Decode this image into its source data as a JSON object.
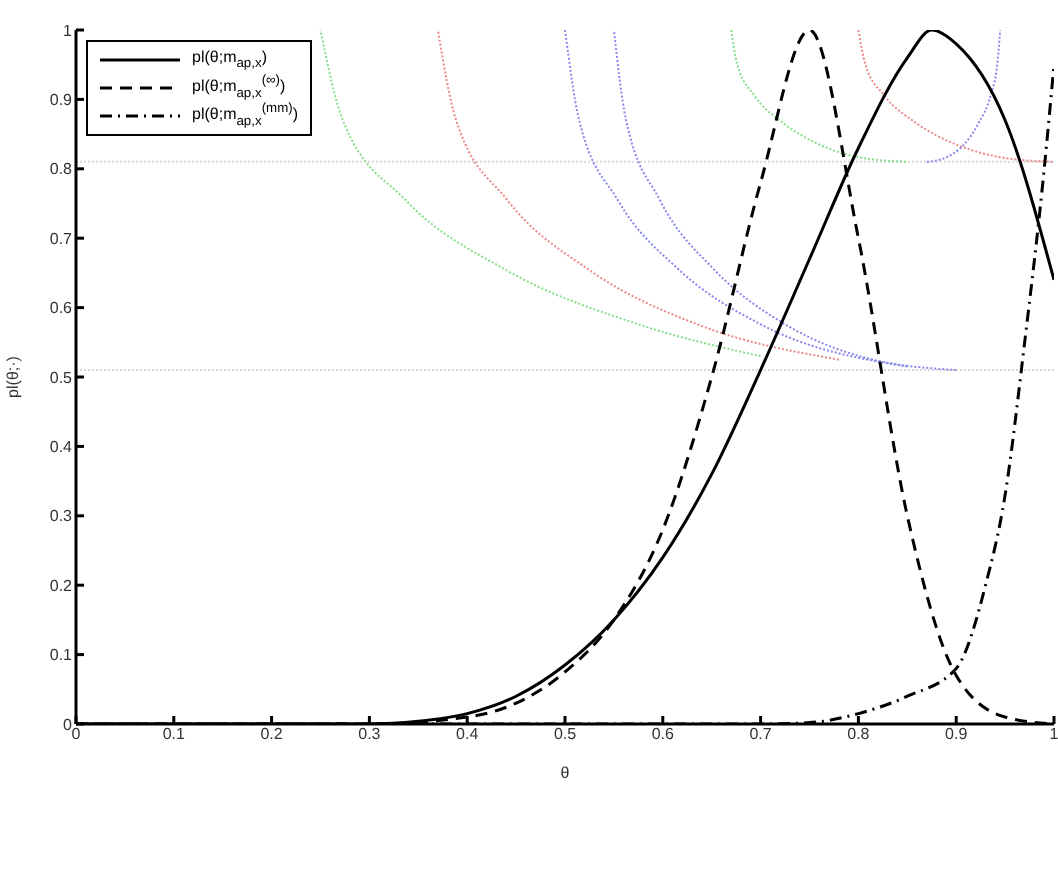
{
  "chart_data": {
    "type": "line",
    "xlabel": "θ",
    "ylabel": "pl(θ;·)",
    "xlim": [
      0,
      1
    ],
    "ylim": [
      0,
      1
    ],
    "xticks": [
      0,
      0.1,
      0.2,
      0.3,
      0.4,
      0.5,
      0.6,
      0.7,
      0.8,
      0.9,
      1
    ],
    "yticks": [
      0,
      0.1,
      0.2,
      0.3,
      0.4,
      0.5,
      0.6,
      0.7,
      0.8,
      0.9,
      1
    ],
    "grid": false,
    "legend": "top left",
    "marker": "none",
    "ref_lines": [
      {
        "axis": "y",
        "value": 0.81,
        "color": "#d8d8d8",
        "line_style": "dotted"
      },
      {
        "axis": "y",
        "value": 0.51,
        "color": "#d8d8d8",
        "line_style": "dotted"
      }
    ],
    "series": [
      {
        "color": "#88dd88",
        "line_style": "dotted",
        "x": [
          0.7,
          0.575,
          0.44,
          0.337,
          0.272,
          0.25
        ],
        "values": [
          0.53,
          0.576,
          0.654,
          0.755,
          0.873,
          1
        ]
      },
      {
        "color": "#ee8888",
        "line_style": "dotted",
        "x": [
          0.78,
          0.635,
          0.525,
          0.441,
          0.388,
          0.37
        ],
        "values": [
          0.525,
          0.576,
          0.654,
          0.755,
          0.873,
          1
        ]
      },
      {
        "color": "#8888ee",
        "line_style": "dotted",
        "x": [
          0.85,
          0.7,
          0.617,
          0.554,
          0.514,
          0.5
        ],
        "values": [
          0.515,
          0.576,
          0.654,
          0.755,
          0.873,
          1
        ]
      },
      {
        "color": "#8888ee",
        "line_style": "dotted",
        "x": [
          0.9,
          0.809,
          0.725,
          0.653,
          0.597,
          0.562,
          0.55
        ],
        "values": [
          0.51,
          0.527,
          0.576,
          0.654,
          0.755,
          0.873,
          1
        ]
      },
      {
        "color": "#88dd88",
        "line_style": "dotted",
        "x": [
          0.67,
          0.676,
          0.694,
          0.723,
          0.76,
          0.803,
          0.85
        ],
        "values": [
          1,
          0.951,
          0.905,
          0.866,
          0.835,
          0.816,
          0.81
        ]
      },
      {
        "color": "#ee8888",
        "line_style": "dotted",
        "x": [
          0.8,
          0.807,
          0.827,
          0.859,
          0.9,
          0.948,
          1
        ],
        "values": [
          1,
          0.951,
          0.905,
          0.866,
          0.835,
          0.816,
          0.81
        ]
      },
      {
        "color": "#8888ee",
        "line_style": "dotted",
        "x": [
          0.87,
          0.889,
          0.908,
          0.923,
          0.935,
          0.942,
          0.945
        ],
        "values": [
          0.81,
          0.816,
          0.835,
          0.866,
          0.905,
          0.951,
          1
        ]
      },
      {
        "name": "pl(θ;m$_{ap,x}$)",
        "color": "#000000",
        "line_style": "solid",
        "x": [
          0,
          0.2,
          0.3,
          0.35,
          0.4,
          0.45,
          0.5,
          0.55,
          0.6,
          0.65,
          0.7,
          0.75,
          0.8,
          0.85,
          0.875,
          0.9,
          0.95,
          1
        ],
        "values": [
          0,
          0,
          0,
          0.004,
          0.015,
          0.04,
          0.085,
          0.15,
          0.24,
          0.36,
          0.51,
          0.67,
          0.83,
          0.96,
          1,
          0.98,
          0.87,
          0.64
        ]
      },
      {
        "name": "pl(θ;m$_{ap,x}$$^{(∞)}$)",
        "color": "#000000",
        "line_style": "dashed",
        "x": [
          0,
          0.2,
          0.3,
          0.4,
          0.45,
          0.5,
          0.55,
          0.6,
          0.65,
          0.7,
          0.75,
          0.8,
          0.85,
          0.9,
          0.95,
          1
        ],
        "values": [
          0,
          0,
          0,
          0.01,
          0.03,
          0.075,
          0.15,
          0.28,
          0.5,
          0.78,
          1,
          0.7,
          0.3,
          0.07,
          0.01,
          0
        ]
      },
      {
        "name": "pl(θ;m$_{ap,x}$$^{(mm)}$)",
        "color": "#000000",
        "line_style": "dashdot",
        "x": [
          0,
          0.5,
          0.7,
          0.75,
          0.8,
          0.85,
          0.9,
          0.93,
          0.95,
          0.97,
          0.99,
          1
        ],
        "values": [
          0,
          0,
          0,
          0.002,
          0.015,
          0.04,
          0.08,
          0.2,
          0.33,
          0.55,
          0.8,
          0.95
        ]
      }
    ]
  }
}
